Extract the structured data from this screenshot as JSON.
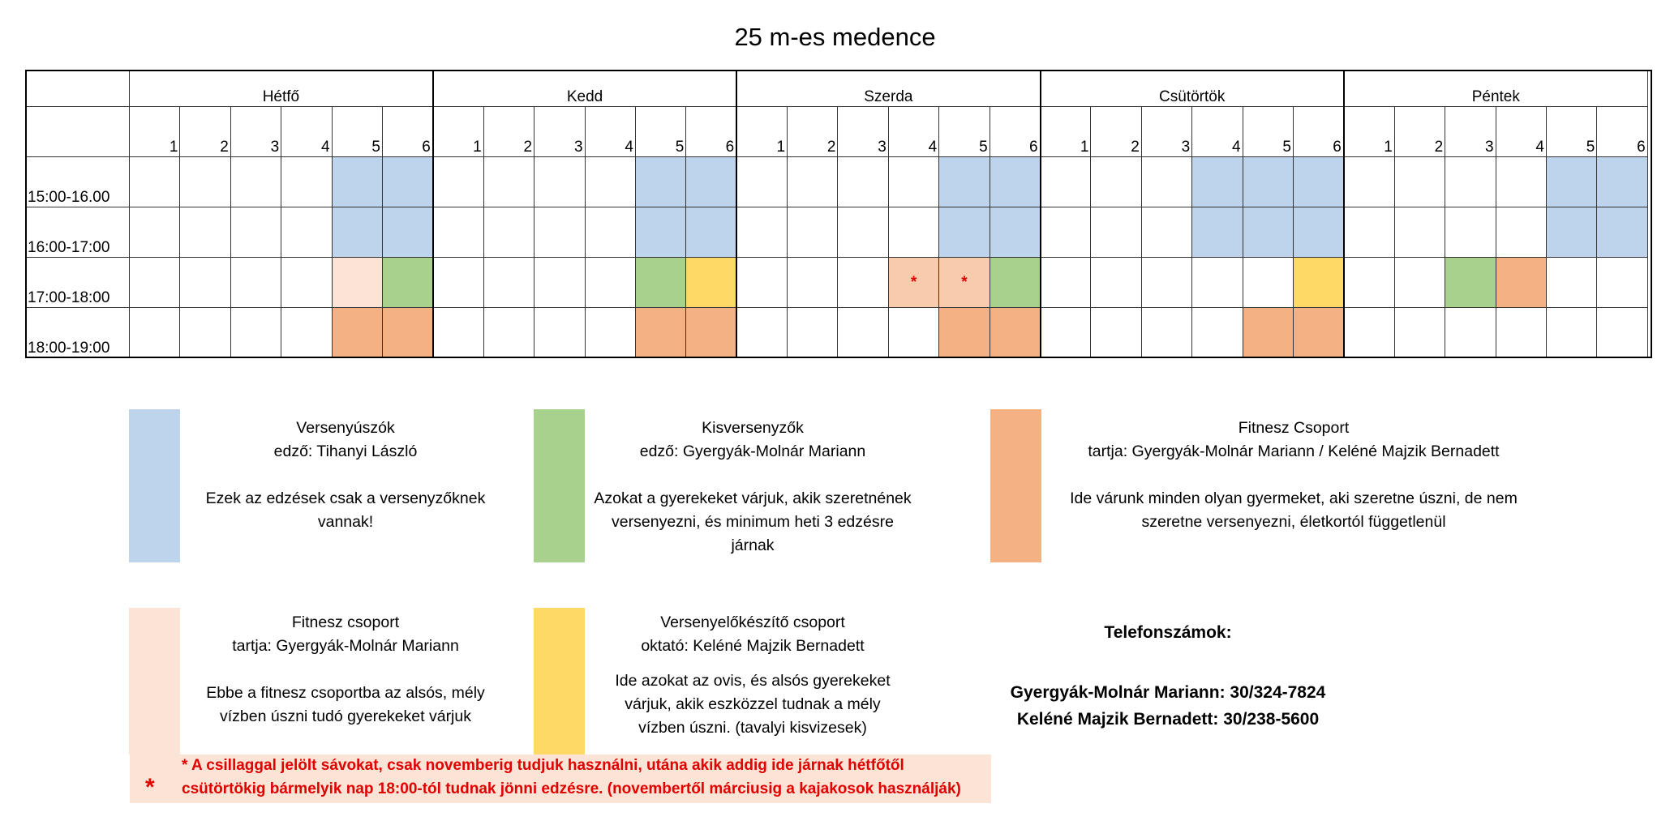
{
  "title": "25 m-es medence",
  "days": [
    "Hétfő",
    "Kedd",
    "Szerda",
    "Csütörtök",
    "Péntek"
  ],
  "lanes": [
    "1",
    "2",
    "3",
    "4",
    "5",
    "6"
  ],
  "times": [
    "15:00-16.00",
    "16:00-17:00",
    "17:00-18:00",
    "18:00-19:00"
  ],
  "star_symbol": "*",
  "colors": {
    "V": "#bdd4ec",
    "K": "#a9d18e",
    "F": "#f4b183",
    "P": "#fbe3d5",
    "S": "#f8cbad",
    "Y": "#ffd966"
  },
  "grid": [
    [
      "....VV",
      "....VV",
      "....VV",
      "...VVV",
      "....VV"
    ],
    [
      "....VV",
      "....VV",
      "....VV",
      "...VVV",
      "....VV"
    ],
    [
      "....PK",
      "....KY",
      "...SSK",
      ".....Y",
      "..KF.."
    ],
    [
      "....FF",
      "....FF",
      "....FF",
      "....FF",
      "......"
    ]
  ],
  "legend": {
    "versenyuszok": {
      "title": "Versenyúszók",
      "coach": "edző: Tihanyi László",
      "desc_1": "Ezek az edzések csak a versenyzőknek",
      "desc_2": "vannak!"
    },
    "kisversenyzok": {
      "title": "Kisversenyzők",
      "coach": "edző: Gyergyák-Molnár Mariann",
      "desc_1": "Azokat a gyerekeket várjuk, akik szeretnének",
      "desc_2": "versenyezni, és minimum heti 3 edzésre",
      "desc_3": "járnak"
    },
    "fitnesz": {
      "title": "Fitnesz Csoport",
      "coach": "tartja: Gyergyák-Molnár Mariann / Keléné Majzik Bernadett",
      "desc_1": "Ide várunk minden olyan gyermeket, aki szeretne úszni, de nem",
      "desc_2": "szeretne versenyezni, életkortól függetlenül"
    },
    "fitnesz2": {
      "title": "Fitnesz csoport",
      "coach": "tartja: Gyergyák-Molnár Mariann",
      "desc_1": "Ebbe a fitnesz csoportba az alsós, mély",
      "desc_2": "vízben úszni tudó gyerekeket várjuk"
    },
    "verseny_elokeszito": {
      "title": "Versenyelőkészítő csoport",
      "coach": "oktató: Keléné Majzik Bernadett",
      "desc_1": "Ide azokat az ovis, és alsós gyerekeket",
      "desc_2": "várjuk, akik eszközzel tudnak a mély",
      "desc_3": "vízben úszni. (tavalyi kisvizesek)"
    }
  },
  "note": {
    "star": "*",
    "line_1": "* A csillaggal jelölt sávokat, csak novemberig tudjuk használni, utána akik addig ide járnak hétfőtől",
    "line_2": "csütörtökig bármelyik nap 18:00-tól tudnak jönni edzésre. (novembertől márciusig a kajakosok használják)"
  },
  "phones": {
    "heading": "Telefonszámok:",
    "line_1": "Gyergyák-Molnár Mariann: 30/324-7824",
    "line_2": "Keléné Majzik Bernadett: 30/238-5600"
  }
}
